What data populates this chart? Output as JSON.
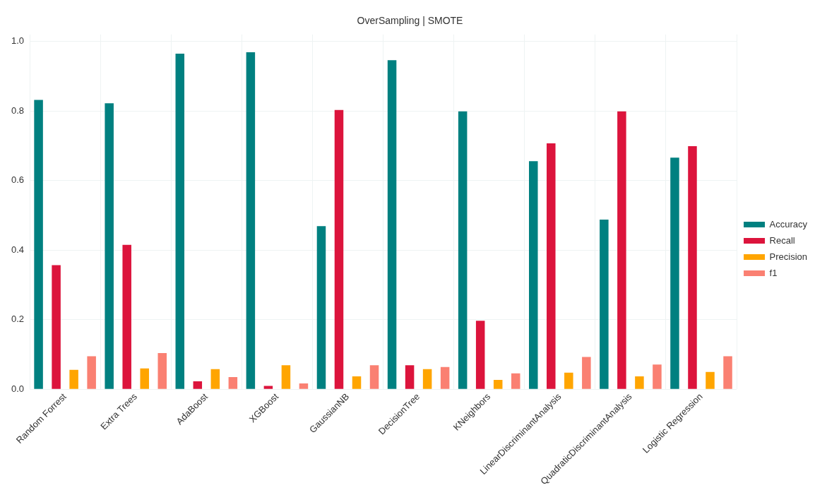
{
  "chart_data": {
    "type": "bar",
    "title": "OverSampling | SMOTE",
    "categories": [
      "Random Forrest",
      "Extra Trees",
      "AdaBoost",
      "XGBoost",
      "GaussianNB",
      "DecisionTree",
      "KNeighbors",
      "LinearDiscriminantAnalysis",
      "QuadraticDiscriminantAnalysis",
      "Logistic Regression"
    ],
    "series": [
      {
        "name": "Accuracy",
        "color": "#008080",
        "values": [
          0.832,
          0.822,
          0.965,
          0.969,
          0.469,
          0.946,
          0.799,
          0.656,
          0.488,
          0.666
        ]
      },
      {
        "name": "Recall",
        "color": "#dc143c",
        "values": [
          0.357,
          0.415,
          0.023,
          0.01,
          0.803,
          0.069,
          0.197,
          0.707,
          0.799,
          0.699
        ]
      },
      {
        "name": "Precision",
        "color": "#ffa500",
        "values": [
          0.056,
          0.06,
          0.058,
          0.069,
          0.037,
          0.058,
          0.027,
          0.048,
          0.037,
          0.05
        ]
      },
      {
        "name": "f1",
        "color": "#fa8072",
        "values": [
          0.095,
          0.104,
          0.035,
          0.017,
          0.069,
          0.064,
          0.046,
          0.093,
          0.071,
          0.095
        ]
      }
    ],
    "ylim": [
      0,
      1.02
    ],
    "yticks": [
      {
        "value": 0,
        "label": "0.0"
      },
      {
        "value": 0.2,
        "label": "0.2"
      },
      {
        "value": 0.4,
        "label": "0.4"
      },
      {
        "value": 0.6,
        "label": "0.6"
      },
      {
        "value": 0.8,
        "label": "0.8"
      },
      {
        "value": 1,
        "label": "1.0"
      }
    ],
    "grid": true,
    "legend": "right"
  }
}
